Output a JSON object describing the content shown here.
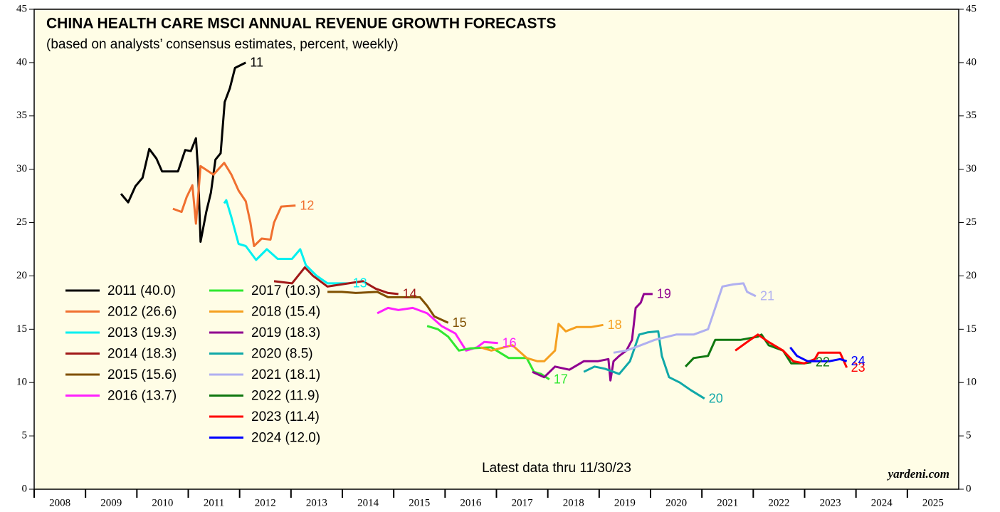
{
  "chart_data": {
    "type": "line",
    "title": "CHINA HEALTH CARE MSCI ANNUAL REVENUE GROWTH FORECASTS",
    "subtitle": "(based on analysts’ consensus estimates, percent, weekly)",
    "annotations": [
      "Latest data thru  11/30/23",
      "yardeni.com"
    ],
    "xlim": [
      2008,
      2026
    ],
    "xticks": [
      2008,
      2009,
      2010,
      2011,
      2012,
      2013,
      2014,
      2015,
      2016,
      2017,
      2018,
      2019,
      2020,
      2021,
      2022,
      2023,
      2024,
      2025
    ],
    "ylim": [
      0,
      45
    ],
    "yticks": [
      0,
      5,
      10,
      15,
      20,
      25,
      30,
      35,
      40,
      45
    ],
    "y2lim": [
      0,
      45
    ],
    "y2ticks": [
      0,
      5,
      10,
      15,
      20,
      25,
      30,
      35,
      40,
      45
    ],
    "series": [
      {
        "name": "2011 (40.0)",
        "end_label": "11",
        "color": "#000000",
        "x": [
          2009.69,
          2009.83,
          2009.97,
          2010.11,
          2010.24,
          2010.38,
          2010.49,
          2010.8,
          2010.94,
          2011.05,
          2011.15,
          2011.19,
          2011.24,
          2011.35,
          2011.44,
          2011.53,
          2011.63,
          2011.71,
          2011.81,
          2011.91,
          2012.12
        ],
        "values": [
          27.7,
          26.9,
          28.4,
          29.2,
          31.9,
          31,
          29.8,
          29.8,
          31.8,
          31.7,
          32.9,
          30,
          23.2,
          26,
          27.8,
          30.9,
          31.5,
          36.3,
          37.6,
          39.5,
          40.0
        ]
      },
      {
        "name": "2012 (26.6)",
        "end_label": "12",
        "color": "#f07030",
        "x": [
          2010.7,
          2010.87,
          2010.97,
          2011.08,
          2011.15,
          2011.24,
          2011.49,
          2011.7,
          2011.84,
          2011.98,
          2012.12,
          2012.21,
          2012.28,
          2012.43,
          2012.6,
          2012.67,
          2012.81,
          2013.09
        ],
        "values": [
          26.3,
          26,
          27.4,
          28.5,
          24.9,
          30.3,
          29.5,
          30.6,
          29.5,
          28,
          27,
          25,
          22.8,
          23.5,
          23.4,
          25,
          26.5,
          26.6
        ]
      },
      {
        "name": "2013 (19.3)",
        "end_label": "13",
        "color": "#00f0f0",
        "x": [
          2011.7,
          2011.74,
          2011.84,
          2011.98,
          2012.12,
          2012.32,
          2012.53,
          2012.74,
          2013.02,
          2013.18,
          2013.29,
          2013.5,
          2013.71,
          2014.12
        ],
        "values": [
          26.8,
          27.1,
          25.5,
          23,
          22.8,
          21.5,
          22.5,
          21.6,
          21.6,
          22.5,
          21,
          20,
          19.3,
          19.3
        ]
      },
      {
        "name": "2014 (18.3)",
        "end_label": "14",
        "color": "#a01818",
        "x": [
          2012.67,
          2013.02,
          2013.27,
          2013.43,
          2013.71,
          2014.12,
          2014.4,
          2014.65,
          2014.89,
          2015.09
        ],
        "values": [
          19.5,
          19.3,
          20.8,
          20,
          19,
          19.3,
          19.5,
          18.8,
          18.4,
          18.3
        ]
      },
      {
        "name": "2015 (15.6)",
        "end_label": "15",
        "color": "#805000",
        "x": [
          2013.71,
          2013.99,
          2014.26,
          2014.68,
          2014.89,
          2015.23,
          2015.51,
          2015.65,
          2015.79,
          2016.06
        ],
        "values": [
          18.5,
          18.5,
          18.4,
          18.5,
          18,
          18,
          18,
          17.2,
          16.2,
          15.6
        ]
      },
      {
        "name": "2016 (13.7)",
        "end_label": "16",
        "color": "#ff20ff",
        "x": [
          2014.68,
          2014.89,
          2015.09,
          2015.37,
          2015.65,
          2015.93,
          2016.2,
          2016.41,
          2016.62,
          2016.76,
          2017.03
        ],
        "values": [
          16.5,
          17,
          16.8,
          17,
          16.5,
          15.3,
          14.6,
          13,
          13.3,
          13.8,
          13.7
        ]
      },
      {
        "name": "2017 (10.3)",
        "end_label": "17",
        "color": "#30e830",
        "x": [
          2015.65,
          2015.86,
          2016.06,
          2016.27,
          2016.48,
          2016.9,
          2017.24,
          2017.59,
          2017.73,
          2017.87,
          2018.03
        ],
        "values": [
          15.3,
          15,
          14.3,
          13,
          13.2,
          13.3,
          12.3,
          12.3,
          11,
          10.8,
          10.3
        ]
      },
      {
        "name": "2018 (15.4)",
        "end_label": "18",
        "color": "#f5a020",
        "x": [
          2016.69,
          2016.9,
          2017.31,
          2017.59,
          2017.8,
          2017.93,
          2018.14,
          2018.21,
          2018.35,
          2018.56,
          2018.84,
          2019.08
        ],
        "values": [
          13.3,
          13,
          13.5,
          12.3,
          12,
          12,
          13,
          15.5,
          14.8,
          15.2,
          15.2,
          15.4
        ]
      },
      {
        "name": "2019 (18.3)",
        "end_label": "19",
        "color": "#900090",
        "x": [
          2017.7,
          2017.93,
          2018.14,
          2018.42,
          2018.7,
          2018.97,
          2019.18,
          2019.22,
          2019.28,
          2019.39,
          2019.53,
          2019.64,
          2019.71,
          2019.81,
          2019.87,
          2020.04
        ],
        "values": [
          11,
          10.5,
          11.5,
          11.2,
          12,
          12,
          12.2,
          10.2,
          12,
          12.5,
          13,
          14,
          17,
          17.5,
          18.3,
          18.3
        ]
      },
      {
        "name": "2020 (8.5)",
        "end_label": "20",
        "color": "#10a8a8",
        "x": [
          2018.7,
          2018.91,
          2019.11,
          2019.39,
          2019.6,
          2019.78,
          2019.94,
          2020.15,
          2020.22,
          2020.36,
          2020.57,
          2020.78,
          2021.05
        ],
        "values": [
          11,
          11.5,
          11.3,
          10.8,
          12,
          14.5,
          14.7,
          14.8,
          12.5,
          10.5,
          10,
          9.3,
          8.5
        ]
      },
      {
        "name": "2021 (18.1)",
        "end_label": "21",
        "color": "#b0b0f0",
        "x": [
          2019.28,
          2019.53,
          2019.81,
          2020.08,
          2020.5,
          2020.84,
          2021.12,
          2021.26,
          2021.4,
          2021.61,
          2021.81,
          2021.88,
          2022.05
        ],
        "values": [
          12.8,
          13,
          13.5,
          14,
          14.5,
          14.5,
          15,
          17,
          19,
          19.2,
          19.3,
          18.5,
          18.1
        ]
      },
      {
        "name": "2022 (11.9)",
        "end_label": "22",
        "color": "#107810",
        "x": [
          2020.68,
          2020.84,
          2021.12,
          2021.26,
          2021.47,
          2021.75,
          2022.09,
          2022.16,
          2022.3,
          2022.58,
          2022.74,
          2022.99,
          2023.13
        ],
        "values": [
          11.5,
          12.3,
          12.5,
          14,
          14,
          14,
          14.3,
          14.5,
          13.5,
          13,
          11.8,
          11.8,
          11.9
        ]
      },
      {
        "name": "2023 (11.4)",
        "end_label": "23",
        "color": "#ff0000",
        "x": [
          2021.65,
          2021.88,
          2022.09,
          2022.3,
          2022.58,
          2022.78,
          2022.99,
          2023.2,
          2023.27,
          2023.48,
          2023.69,
          2023.82
        ],
        "values": [
          13,
          13.8,
          14.5,
          13.8,
          13,
          12,
          11.8,
          12.2,
          12.8,
          12.8,
          12.8,
          11.4
        ]
      },
      {
        "name": "2024 (12.0)",
        "end_label": "24",
        "color": "#0000ff",
        "x": [
          2022.72,
          2022.85,
          2023.06,
          2023.27,
          2023.48,
          2023.69,
          2023.82
        ],
        "values": [
          13.3,
          12.5,
          12,
          12,
          12,
          12.2,
          12
        ]
      }
    ]
  }
}
